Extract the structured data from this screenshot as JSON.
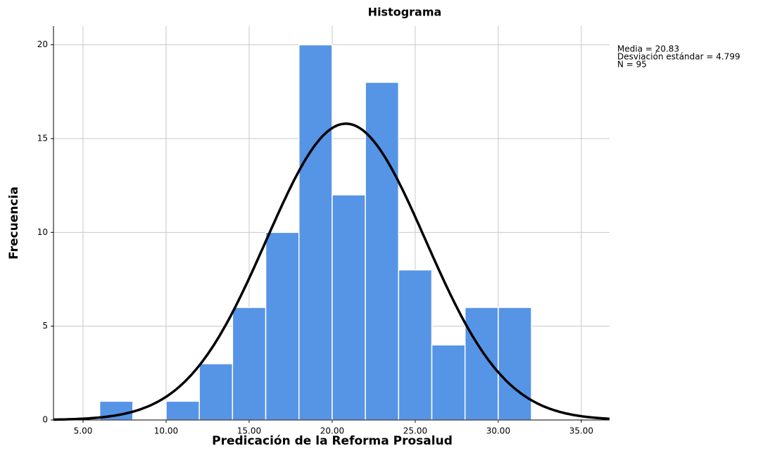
{
  "chart_data": {
    "type": "histogram",
    "title": "Histograma",
    "x_label": "Predicación de la Reforma Prosalud",
    "y_label": "Frecuencia",
    "bins": [
      6,
      8,
      10,
      12,
      14,
      16,
      18,
      20,
      22,
      24,
      26,
      28,
      30,
      32
    ],
    "values": [
      1,
      0,
      1,
      3,
      6,
      10,
      20,
      12,
      18,
      8,
      4,
      6,
      6
    ],
    "color": "#5694e6",
    "xlim": [
      3.22,
      36.7
    ],
    "xticks": [
      {
        "value": 5,
        "label": "5.00"
      },
      {
        "value": 10,
        "label": "10.00"
      },
      {
        "value": 15,
        "label": "15.00"
      },
      {
        "value": 20,
        "label": "20.00"
      },
      {
        "value": 25,
        "label": "25.00"
      },
      {
        "value": 30,
        "label": "30.00"
      },
      {
        "value": 35,
        "label": "35.00"
      }
    ],
    "ylim": [
      0,
      21
    ],
    "yticks": [
      0,
      5,
      10,
      15,
      20
    ],
    "grid": true,
    "annotations": [
      "Media = 20.83",
      "Desviación estándar = 4.799",
      "N = 95"
    ],
    "normal_curve": {
      "mean": 20.83,
      "sd": 4.799,
      "n": 95
    }
  }
}
